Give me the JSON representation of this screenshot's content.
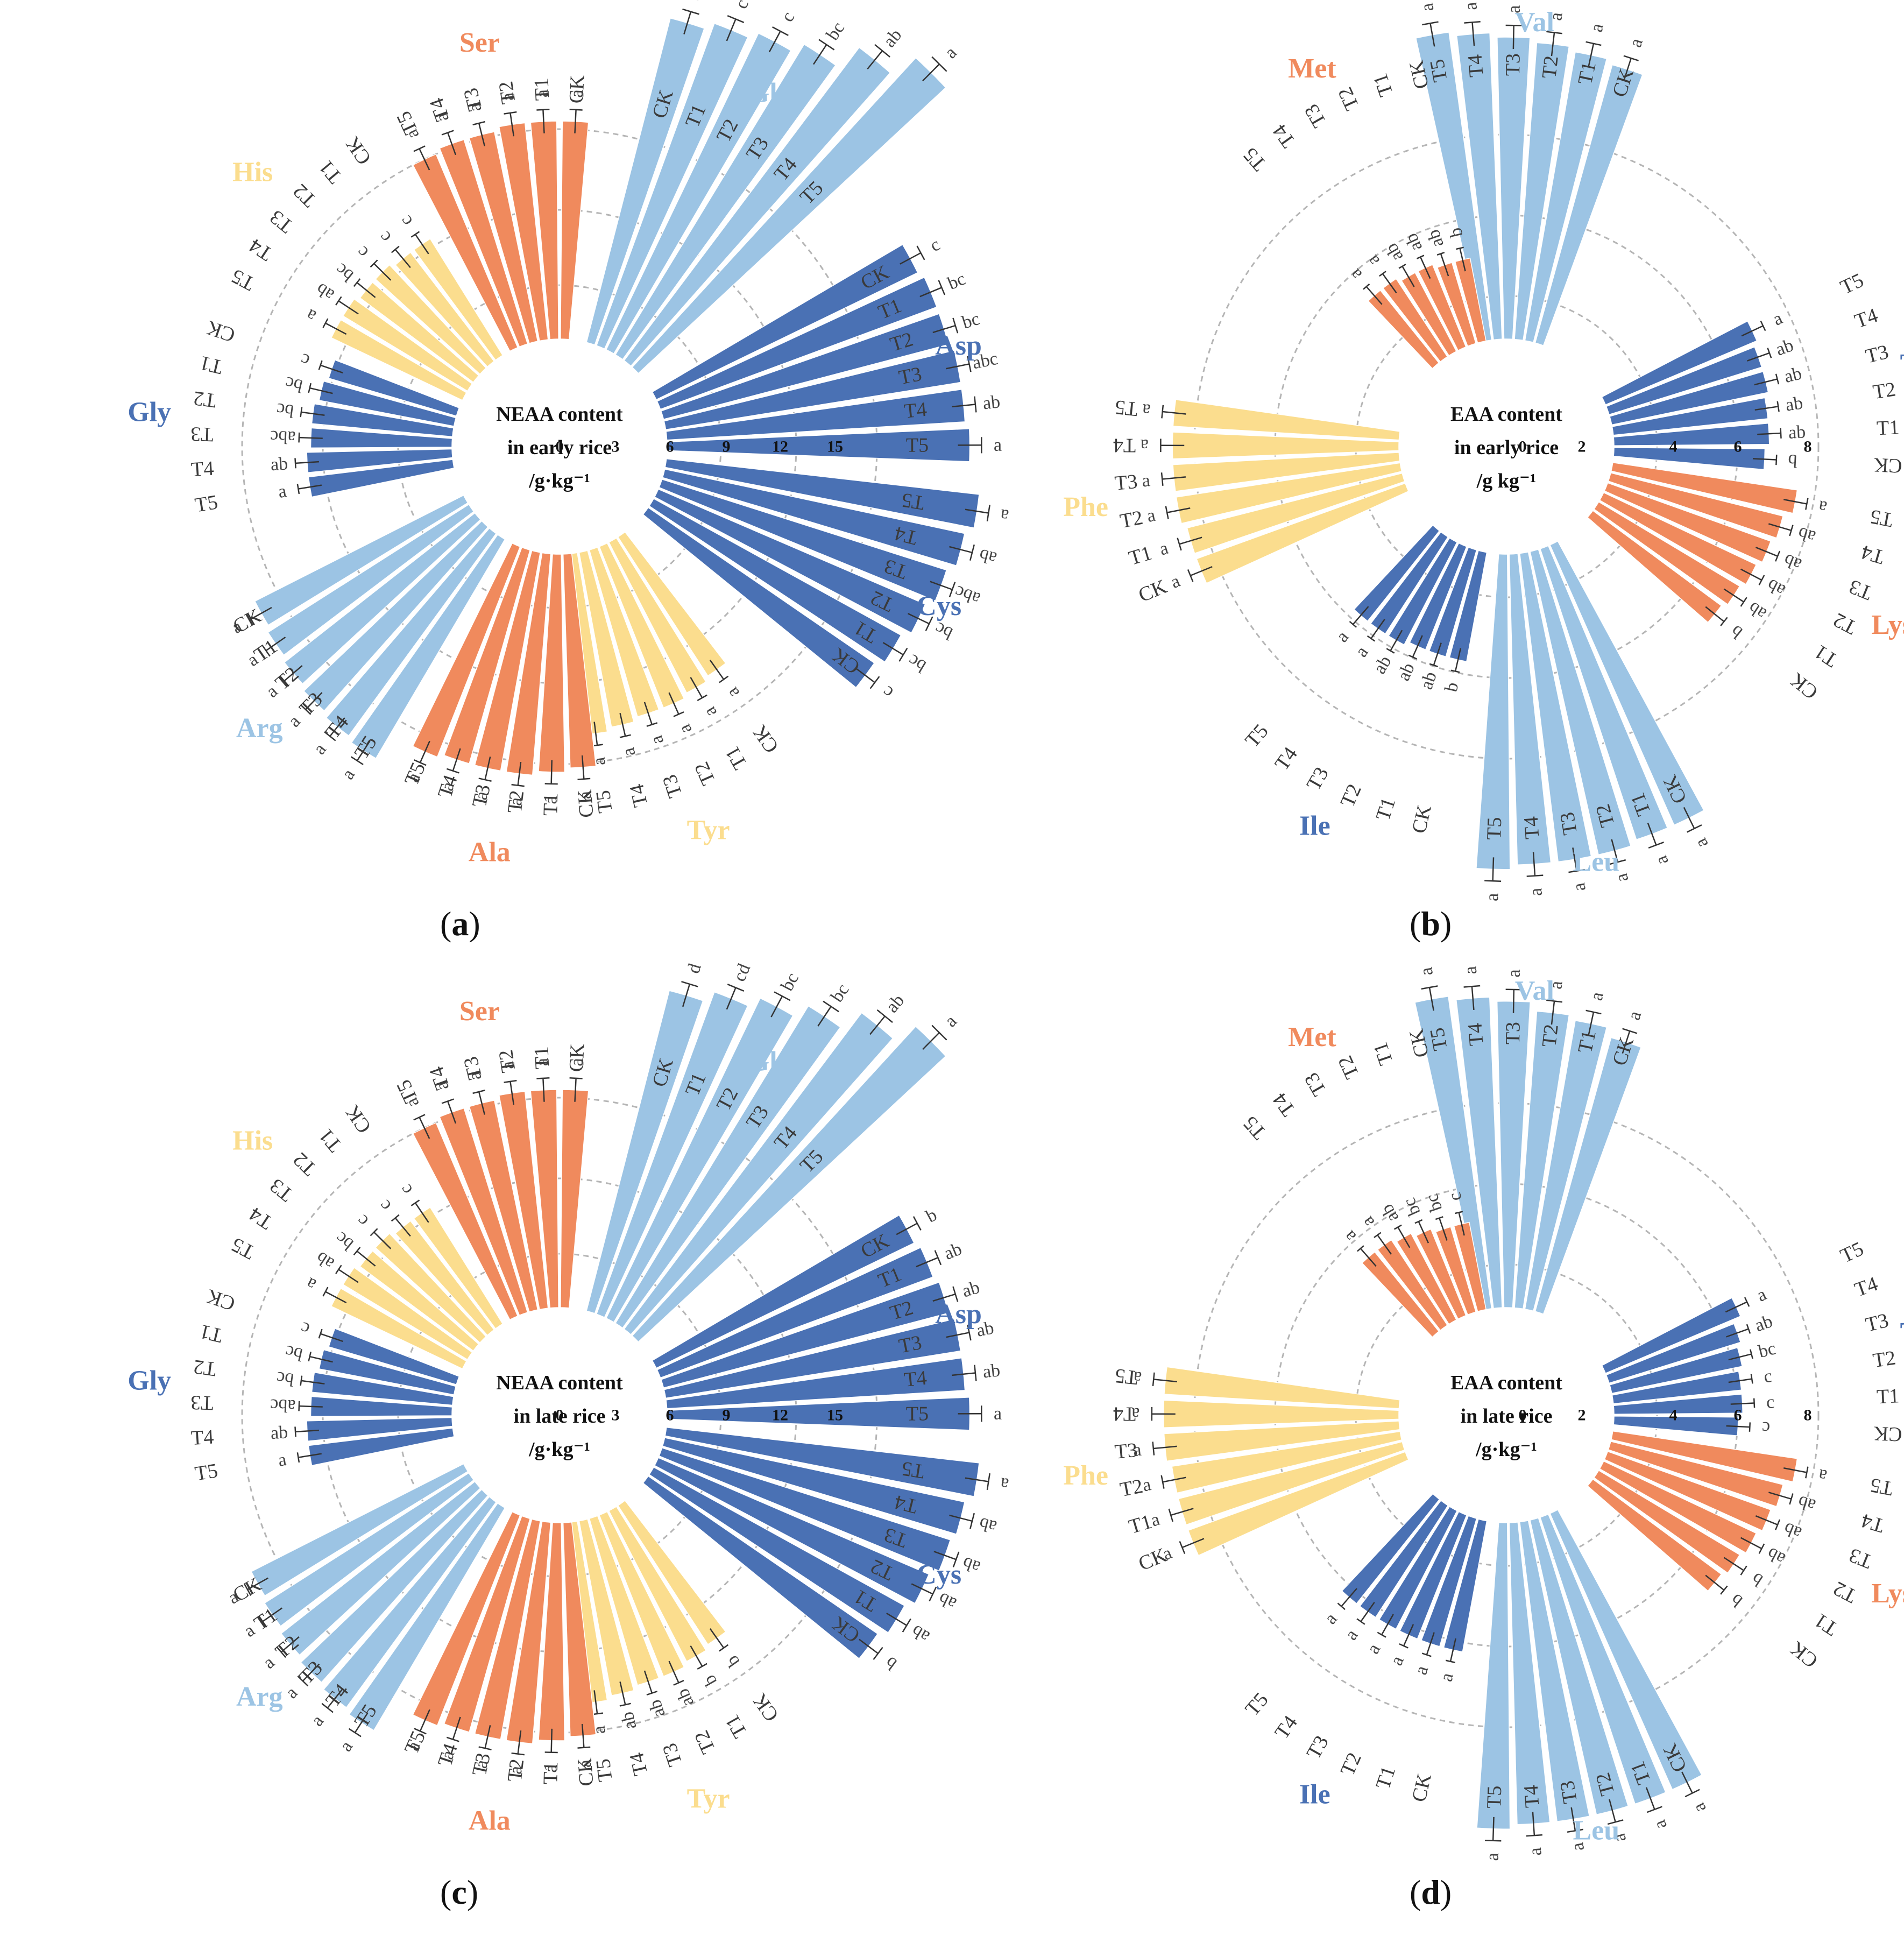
{
  "colors": {
    "light_blue": "#9cc4e4",
    "dark_blue": "#4a71b4",
    "orange": "#f08a5d",
    "yellow": "#fbdd8e",
    "grid": "#b5b5b5",
    "treatment_text": "#3a3a3a",
    "letter_text": "#444444"
  },
  "chart_data": [
    {
      "id": "a",
      "type": "bar",
      "layout": "circular",
      "caption_letter": "a",
      "center_title": [
        "NEAA content",
        "in early rice",
        "/g·kg⁻¹"
      ],
      "axis_ticks": [
        "0",
        "3",
        "6",
        "9",
        "12",
        "15"
      ],
      "ylim": [
        0,
        15
      ],
      "categories": [
        "CK",
        "T1",
        "T2",
        "T3",
        "T4",
        "T5"
      ],
      "groups": [
        {
          "name": "Glu",
          "color": "light_blue",
          "order": [
            "CK",
            "T1",
            "T2",
            "T3",
            "T4",
            "T5"
          ],
          "values": [
            8.3,
            8.5,
            8.7,
            9.0,
            9.7,
            10.4
          ],
          "letters": [
            "c",
            "c",
            "c",
            "bc",
            "ab",
            "a"
          ]
        },
        {
          "name": "Asp",
          "color": "dark_blue",
          "order": [
            "CK",
            "T1",
            "T2",
            "T3",
            "T4",
            "T5"
          ],
          "values": [
            7.2,
            7.3,
            7.3,
            7.4,
            7.4,
            7.5
          ],
          "letters": [
            "c",
            "bc",
            "bc",
            "abc",
            "ab",
            "a"
          ]
        },
        {
          "name": "Cys",
          "color": "dark_blue",
          "order": [
            "T5",
            "T4",
            "T3",
            "T2",
            "T1",
            "CK"
          ],
          "values": [
            7.8,
            7.6,
            7.4,
            7.2,
            7.0,
            6.8
          ],
          "letters": [
            "a",
            "ab",
            "abc",
            "bc",
            "bc",
            "c"
          ]
        },
        {
          "name": "Tyr",
          "color": "yellow",
          "order": [
            "CK",
            "T1",
            "T2",
            "T3",
            "T4",
            "T5"
          ],
          "values": [
            4.1,
            4.2,
            4.3,
            4.3,
            4.4,
            4.5
          ],
          "letters": [
            "a",
            "a",
            "a",
            "a",
            "a",
            "a"
          ]
        },
        {
          "name": "Ala",
          "color": "orange",
          "order": [
            "CK",
            "T1",
            "T2",
            "T3",
            "T4",
            "T5"
          ],
          "values": [
            5.3,
            5.4,
            5.5,
            5.5,
            5.5,
            5.6
          ],
          "letters": [
            "a",
            "a",
            "a",
            "a",
            "a",
            "a"
          ]
        },
        {
          "name": "Arg",
          "color": "light_blue",
          "order": [
            "T5",
            "T4",
            "T3",
            "T2",
            "T1",
            "CK"
          ],
          "values": [
            6.3,
            6.2,
            6.1,
            6.0,
            5.9,
            5.8
          ],
          "letters": [
            "a",
            "a",
            "a",
            "a",
            "a",
            "a"
          ]
        },
        {
          "name": "Gly",
          "color": "dark_blue",
          "order": [
            "T5",
            "T4",
            "T3",
            "T2",
            "T1",
            "CK"
          ],
          "values": [
            3.6,
            3.6,
            3.5,
            3.5,
            3.4,
            3.3
          ],
          "letters": [
            "a",
            "ab",
            "abc",
            "bc",
            "bc",
            "c"
          ]
        },
        {
          "name": "His",
          "color": "yellow",
          "order": [
            "T5",
            "T4",
            "T3",
            "T2",
            "T1",
            "CK"
          ],
          "values": [
            3.6,
            3.6,
            3.5,
            3.5,
            3.4,
            3.4
          ],
          "letters": [
            "a",
            "ab",
            "bc",
            "c",
            "c",
            "c"
          ]
        },
        {
          "name": "Ser",
          "color": "orange",
          "order": [
            "T5",
            "T4",
            "T3",
            "T2",
            "T1",
            "CK"
          ],
          "values": [
            5.2,
            5.3,
            5.3,
            5.4,
            5.4,
            5.4
          ],
          "letters": [
            "a",
            "a",
            "a",
            "a",
            "a",
            "a"
          ]
        }
      ]
    },
    {
      "id": "b",
      "type": "bar",
      "layout": "circular",
      "caption_letter": "b",
      "center_title": [
        "EAA content",
        "in early rice",
        "/g kg⁻¹"
      ],
      "axis_ticks": [
        "0",
        "2",
        "4",
        "6",
        "8"
      ],
      "ylim": [
        0,
        8
      ],
      "categories": [
        "CK",
        "T1",
        "T2",
        "T3",
        "T4",
        "T5"
      ],
      "groups": [
        {
          "name": "Val",
          "color": "light_blue",
          "order": [
            "T5",
            "T4",
            "T3",
            "T2",
            "T1",
            "CK"
          ],
          "values": [
            7.0,
            6.9,
            6.8,
            6.7,
            6.6,
            6.5
          ],
          "letters": [
            "a",
            "a",
            "a",
            "a",
            "a",
            "a"
          ]
        },
        {
          "name": "Thr",
          "color": "dark_blue",
          "order": [
            "T5",
            "T4",
            "T3",
            "T2",
            "T1",
            "CK"
          ],
          "values": [
            3.7,
            3.6,
            3.6,
            3.5,
            3.5,
            3.4
          ],
          "letters": [
            "a",
            "ab",
            "ab",
            "ab",
            "ab",
            "b"
          ]
        },
        {
          "name": "Lys",
          "color": "orange",
          "order": [
            "T5",
            "T4",
            "T3",
            "T2",
            "T1",
            "CK"
          ],
          "values": [
            4.2,
            4.0,
            3.9,
            3.8,
            3.7,
            3.6
          ],
          "letters": [
            "a",
            "ab",
            "ab",
            "ab",
            "ab",
            "b"
          ]
        },
        {
          "name": "Leu",
          "color": "light_blue",
          "order": [
            "CK",
            "T1",
            "T2",
            "T3",
            "T4",
            "T5"
          ],
          "values": [
            6.9,
            6.9,
            7.0,
            7.0,
            7.0,
            7.1
          ],
          "letters": [
            "a",
            "a",
            "a",
            "a",
            "a",
            "a"
          ]
        },
        {
          "name": "Ile",
          "color": "dark_blue",
          "order": [
            "CK",
            "T1",
            "T2",
            "T3",
            "T4",
            "T5"
          ],
          "values": [
            2.5,
            2.5,
            2.5,
            2.6,
            2.6,
            2.6
          ],
          "letters": [
            "b",
            "ab",
            "ab",
            "ab",
            "a",
            "a"
          ]
        },
        {
          "name": "Phe",
          "color": "yellow",
          "order": [
            "CK",
            "T1",
            "T2",
            "T3",
            "T4",
            "T5"
          ],
          "values": [
            5.0,
            5.0,
            5.1,
            5.1,
            5.1,
            5.1
          ],
          "letters": [
            "a",
            "a",
            "a",
            "a",
            "a",
            "a"
          ]
        },
        {
          "name": "Met",
          "color": "orange",
          "order": [
            "T5",
            "T4",
            "T3",
            "T2",
            "T1",
            "CK"
          ],
          "values": [
            2.1,
            2.1,
            2.0,
            2.0,
            1.9,
            1.9
          ],
          "letters": [
            "a",
            "a",
            "ab",
            "ab",
            "ab",
            "b"
          ]
        }
      ]
    },
    {
      "id": "c",
      "type": "bar",
      "layout": "circular",
      "caption_letter": "c",
      "center_title": [
        "NEAA content",
        "in late rice",
        "/g·kg⁻¹"
      ],
      "axis_ticks": [
        "0",
        "3",
        "6",
        "9",
        "12",
        "15"
      ],
      "ylim": [
        0,
        15
      ],
      "categories": [
        "CK",
        "T1",
        "T2",
        "T3",
        "T4",
        "T5"
      ],
      "groups": [
        {
          "name": "Glu",
          "color": "light_blue",
          "order": [
            "CK",
            "T1",
            "T2",
            "T3",
            "T4",
            "T5"
          ],
          "values": [
            8.2,
            8.5,
            8.8,
            9.2,
            9.8,
            10.4
          ],
          "letters": [
            "d",
            "cd",
            "bc",
            "bc",
            "ab",
            "a"
          ]
        },
        {
          "name": "Asp",
          "color": "dark_blue",
          "order": [
            "CK",
            "T1",
            "T2",
            "T3",
            "T4",
            "T5"
          ],
          "values": [
            7.1,
            7.2,
            7.3,
            7.4,
            7.4,
            7.5
          ],
          "letters": [
            "b",
            "ab",
            "ab",
            "ab",
            "ab",
            "a"
          ]
        },
        {
          "name": "Cys",
          "color": "dark_blue",
          "order": [
            "T5",
            "T4",
            "T3",
            "T2",
            "T1",
            "CK"
          ],
          "values": [
            7.8,
            7.6,
            7.5,
            7.3,
            7.1,
            6.9
          ],
          "letters": [
            "a",
            "ab",
            "ab",
            "ab",
            "ab",
            "b"
          ]
        },
        {
          "name": "Tyr",
          "color": "yellow",
          "order": [
            "CK",
            "T1",
            "T2",
            "T3",
            "T4",
            "T5"
          ],
          "values": [
            4.1,
            4.2,
            4.3,
            4.3,
            4.4,
            4.5
          ],
          "letters": [
            "b",
            "b",
            "ab",
            "ab",
            "ab",
            "a"
          ]
        },
        {
          "name": "Ala",
          "color": "orange",
          "order": [
            "CK",
            "T1",
            "T2",
            "T3",
            "T4",
            "T5"
          ],
          "values": [
            5.3,
            5.4,
            5.5,
            5.5,
            5.5,
            5.6
          ],
          "letters": [
            "a",
            "a",
            "a",
            "a",
            "a",
            "a"
          ]
        },
        {
          "name": "Arg",
          "color": "light_blue",
          "order": [
            "T5",
            "T4",
            "T3",
            "T2",
            "T1",
            "CK"
          ],
          "values": [
            6.4,
            6.3,
            6.2,
            6.1,
            6.0,
            5.9
          ],
          "letters": [
            "a",
            "a",
            "a",
            "a",
            "a",
            "a"
          ]
        },
        {
          "name": "Gly",
          "color": "dark_blue",
          "order": [
            "T5",
            "T4",
            "T3",
            "T2",
            "T1",
            "CK"
          ],
          "values": [
            3.6,
            3.6,
            3.5,
            3.5,
            3.4,
            3.3
          ],
          "letters": [
            "a",
            "ab",
            "abc",
            "bc",
            "bc",
            "c"
          ]
        },
        {
          "name": "His",
          "color": "yellow",
          "order": [
            "T5",
            "T4",
            "T3",
            "T2",
            "T1",
            "CK"
          ],
          "values": [
            3.6,
            3.6,
            3.5,
            3.5,
            3.4,
            3.4
          ],
          "letters": [
            "a",
            "ab",
            "bc",
            "c",
            "c",
            "c"
          ]
        },
        {
          "name": "Ser",
          "color": "orange",
          "order": [
            "T5",
            "T4",
            "T3",
            "T2",
            "T1",
            "CK"
          ],
          "values": [
            5.2,
            5.3,
            5.3,
            5.4,
            5.4,
            5.4
          ],
          "letters": [
            "a",
            "a",
            "a",
            "a",
            "a",
            "a"
          ]
        }
      ]
    },
    {
      "id": "d",
      "type": "bar",
      "layout": "circular",
      "caption_letter": "d",
      "center_title": [
        "EAA content",
        "in late rice",
        "/g·kg⁻¹"
      ],
      "axis_ticks": [
        "0",
        "2",
        "4",
        "6",
        "8"
      ],
      "ylim": [
        0,
        8
      ],
      "categories": [
        "CK",
        "T1",
        "T2",
        "T3",
        "T4",
        "T5"
      ],
      "groups": [
        {
          "name": "Val",
          "color": "light_blue",
          "order": [
            "T5",
            "T4",
            "T3",
            "T2",
            "T1",
            "CK"
          ],
          "values": [
            7.1,
            7.0,
            6.9,
            6.7,
            6.6,
            6.4
          ],
          "letters": [
            "a",
            "a",
            "a",
            "a",
            "a",
            "a"
          ]
        },
        {
          "name": "Thr",
          "color": "dark_blue",
          "order": [
            "T5",
            "T4",
            "T3",
            "T2",
            "T1",
            "CK"
          ],
          "values": [
            3.3,
            3.1,
            3.0,
            2.9,
            2.9,
            2.8
          ],
          "letters": [
            "a",
            "ab",
            "bc",
            "c",
            "c",
            "c"
          ]
        },
        {
          "name": "Lys",
          "color": "orange",
          "order": [
            "T5",
            "T4",
            "T3",
            "T2",
            "T1",
            "CK"
          ],
          "values": [
            4.2,
            4.0,
            3.9,
            3.8,
            3.7,
            3.6
          ],
          "letters": [
            "a",
            "ab",
            "ab",
            "ab",
            "b",
            "b"
          ]
        },
        {
          "name": "Leu",
          "color": "light_blue",
          "order": [
            "CK",
            "T1",
            "T2",
            "T3",
            "T4",
            "T5"
          ],
          "values": [
            6.8,
            6.8,
            6.8,
            6.8,
            6.8,
            6.9
          ],
          "letters": [
            "a",
            "a",
            "a",
            "a",
            "a",
            "a"
          ]
        },
        {
          "name": "Ile",
          "color": "dark_blue",
          "order": [
            "CK",
            "T1",
            "T2",
            "T3",
            "T4",
            "T5"
          ],
          "values": [
            3.0,
            3.0,
            3.0,
            3.0,
            3.0,
            3.0
          ],
          "letters": [
            "a",
            "a",
            "a",
            "a",
            "a",
            "a"
          ]
        },
        {
          "name": "Phe",
          "color": "yellow",
          "order": [
            "CK",
            "T1",
            "T2",
            "T3",
            "T4",
            "T5"
          ],
          "values": [
            5.2,
            5.2,
            5.2,
            5.3,
            5.3,
            5.3
          ],
          "letters": [
            "a",
            "a",
            "a",
            "a",
            "a",
            "a"
          ]
        },
        {
          "name": "Met",
          "color": "orange",
          "order": [
            "T5",
            "T4",
            "T3",
            "T2",
            "T1",
            "CK"
          ],
          "values": [
            2.3,
            2.3,
            2.2,
            2.1,
            2.0,
            2.0
          ],
          "letters": [
            "a",
            "a",
            "ab",
            "bc",
            "bc",
            "c"
          ]
        }
      ]
    }
  ]
}
